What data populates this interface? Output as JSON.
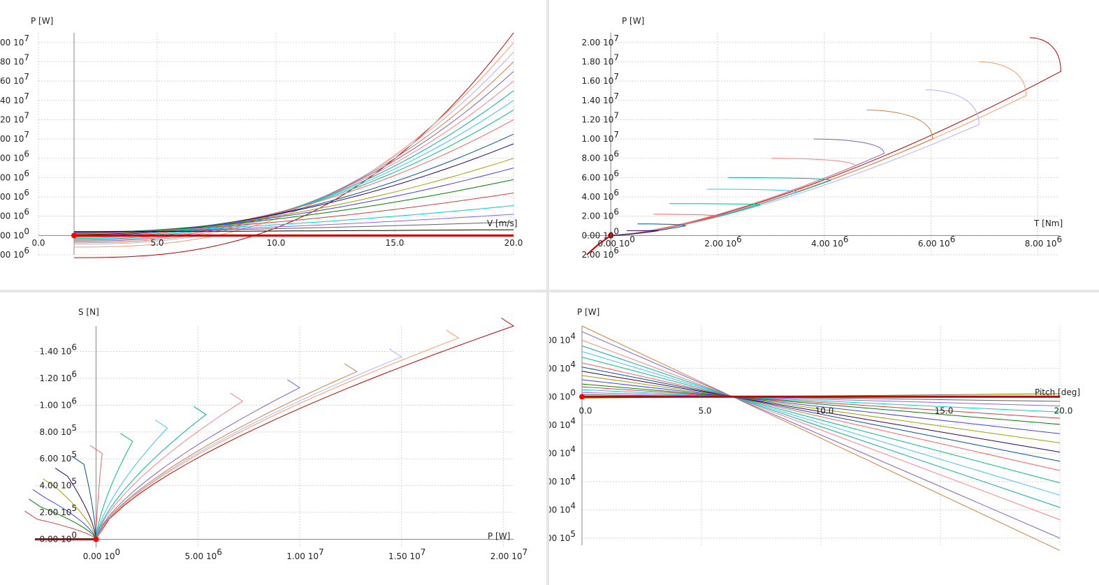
{
  "colors": [
    "#c00000",
    "#ff9966",
    "#b0b0ff",
    "#d08040",
    "#8060c0",
    "#ff8080",
    "#00b0a0",
    "#40c0ff",
    "#00c080",
    "#ff6060",
    "#0050a0",
    "#300060",
    "#a0a000",
    "#4040ff",
    "#008000",
    "#d04040",
    "#00d0d0",
    "#9060ff",
    "#606060",
    "#000000",
    "#808000",
    "#404040"
  ],
  "chart_data": [
    {
      "type": "line",
      "ylabel": "P [W]",
      "xlabel": "V [m/s]",
      "xlim": [
        0,
        20
      ],
      "ylim": [
        -2000000,
        21000000
      ],
      "xticks": [
        {
          "v": 0,
          "label": "0.0"
        },
        {
          "v": 5,
          "label": "5.0"
        },
        {
          "v": 10,
          "label": "10.0"
        },
        {
          "v": 15,
          "label": "15.0"
        },
        {
          "v": 20,
          "label": "20.0"
        }
      ],
      "yticks": [
        {
          "v": -2000000,
          "m": "00",
          "e": "6"
        },
        {
          "v": 0,
          "m": "00",
          "e": "0"
        },
        {
          "v": 2000000,
          "m": "00",
          "e": "6"
        },
        {
          "v": 4000000,
          "m": "00",
          "e": "6"
        },
        {
          "v": 6000000,
          "m": "00",
          "e": "6"
        },
        {
          "v": 8000000,
          "m": "00",
          "e": "6"
        },
        {
          "v": 10000000,
          "m": "00",
          "e": "7"
        },
        {
          "v": 12000000,
          "m": "20",
          "e": "7"
        },
        {
          "v": 14000000,
          "m": "40",
          "e": "7"
        },
        {
          "v": 16000000,
          "m": "60",
          "e": "7"
        },
        {
          "v": 18000000,
          "m": "80",
          "e": "7"
        },
        {
          "v": 20000000,
          "m": "00",
          "e": "7"
        }
      ],
      "grid": true,
      "curves": {
        "count": 20,
        "v_from": 1.5,
        "v_to": 20,
        "finals_mw": [
          21,
          20,
          19,
          18,
          17,
          16,
          15,
          14,
          13,
          12,
          10.5,
          9.5,
          8,
          7,
          5.8,
          4.4,
          3.1,
          2.2,
          1.4,
          0.6
        ],
        "starts_mw": [
          -2.3,
          -1.2,
          -0.9,
          -0.75,
          -0.6,
          -0.5,
          -0.4,
          -0.3,
          -0.2,
          -0.1,
          0.0,
          0.1,
          0.2,
          0.25,
          0.3,
          0.3,
          0.35,
          0.35,
          0.4,
          0.4
        ]
      },
      "marker": {
        "x": 1.5,
        "y": 0
      }
    },
    {
      "type": "line",
      "ylabel": "P [W]",
      "xlabel": "T [Nm]",
      "xlim": [
        -500000,
        8400000
      ],
      "ylim": [
        -2000000,
        21000000
      ],
      "xticks": [
        {
          "v": 0,
          "m": "0.00",
          "e": "0"
        },
        {
          "v": 2000000,
          "m": "2.00",
          "e": "6"
        },
        {
          "v": 4000000,
          "m": "4.00",
          "e": "6"
        },
        {
          "v": 6000000,
          "m": "6.00",
          "e": "6"
        },
        {
          "v": 8000000,
          "m": "8.00",
          "e": "6"
        }
      ],
      "yticks": [
        {
          "v": -2000000,
          "m": "2.00",
          "e": "6"
        },
        {
          "v": 0,
          "m": "0.00",
          "e": "0"
        },
        {
          "v": 2000000,
          "m": "2.00",
          "e": "6"
        },
        {
          "v": 4000000,
          "m": "4.00",
          "e": "6"
        },
        {
          "v": 6000000,
          "m": "6.00",
          "e": "6"
        },
        {
          "v": 8000000,
          "m": "8.00",
          "e": "6"
        },
        {
          "v": 10000000,
          "m": "1.00",
          "e": "7"
        },
        {
          "v": 12000000,
          "m": "1.20",
          "e": "7"
        },
        {
          "v": 14000000,
          "m": "1.40",
          "e": "7"
        },
        {
          "v": 16000000,
          "m": "1.60",
          "e": "7"
        },
        {
          "v": 18000000,
          "m": "1.80",
          "e": "7"
        },
        {
          "v": 20000000,
          "m": "2.00",
          "e": "7"
        }
      ],
      "grid": true,
      "marker": {
        "x": 0,
        "y": 0
      },
      "loops": [
        {
          "tip": [
            7850000,
            20500000
          ],
          "knee": [
            8430000,
            17000000
          ]
        },
        {
          "tip": [
            6900000,
            18000000
          ],
          "knee": [
            7780000,
            14500000
          ]
        },
        {
          "tip": [
            5900000,
            15100000
          ],
          "knee": [
            6900000,
            11500000
          ]
        },
        {
          "tip": [
            4800000,
            13000000
          ],
          "knee": [
            6030000,
            10000000
          ]
        },
        {
          "tip": [
            3800000,
            10000000
          ],
          "knee": [
            5120000,
            8500000
          ]
        },
        {
          "tip": [
            3000000,
            8000000
          ],
          "knee": [
            4580000,
            7200000
          ]
        },
        {
          "tip": [
            2200000,
            6000000
          ],
          "knee": [
            4120000,
            5700000
          ]
        },
        {
          "tip": [
            1800000,
            4800000
          ],
          "knee": [
            3500000,
            4500000
          ]
        },
        {
          "tip": [
            1100000,
            3300000
          ],
          "knee": [
            2800000,
            3200000
          ]
        },
        {
          "tip": [
            800000,
            2200000
          ],
          "knee": [
            2000000,
            2000000
          ]
        },
        {
          "tip": [
            500000,
            1200000
          ],
          "knee": [
            1400000,
            1000000
          ]
        },
        {
          "tip": [
            300000,
            500000
          ],
          "knee": [
            900000,
            500000
          ]
        }
      ]
    },
    {
      "type": "line",
      "ylabel": "S [N]",
      "xlabel": "P [W]",
      "xlim": [
        -3000000,
        20500000
      ],
      "ylim": [
        -60000,
        1590000
      ],
      "xticks": [
        {
          "v": 0,
          "m": "0.00",
          "e": "0"
        },
        {
          "v": 5000000,
          "m": "5.00",
          "e": "6"
        },
        {
          "v": 10000000,
          "m": "1.00",
          "e": "7"
        },
        {
          "v": 15000000,
          "m": "1.50",
          "e": "7"
        },
        {
          "v": 20000000,
          "m": "2.00",
          "e": "7"
        }
      ],
      "yticks": [
        {
          "v": 0,
          "m": "0.00",
          "e": "0"
        },
        {
          "v": 200000,
          "m": "2.00",
          "e": "5"
        },
        {
          "v": 400000,
          "m": "4.00",
          "e": "5"
        },
        {
          "v": 600000,
          "m": "6.00",
          "e": "5"
        },
        {
          "v": 800000,
          "m": "8.00",
          "e": "5"
        },
        {
          "v": 1000000,
          "m": "1.00",
          "e": "6"
        },
        {
          "v": 1200000,
          "m": "1.20",
          "e": "6"
        },
        {
          "v": 1400000,
          "m": "1.40",
          "e": "6"
        }
      ],
      "grid": true,
      "marker": {
        "x": 0,
        "y": 0
      },
      "curves": [
        {
          "end": [
            20500000,
            1590000
          ]
        },
        {
          "end": [
            17800000,
            1500000
          ]
        },
        {
          "end": [
            15200000,
            1350000
          ]
        },
        {
          "end": [
            12600000,
            1200000
          ]
        },
        {
          "end": [
            10500000,
            1070000
          ]
        },
        {
          "end": [
            8700000,
            920000
          ]
        },
        {
          "end": [
            6800000,
            800000
          ]
        },
        {
          "end": [
            4800000,
            700000
          ]
        },
        {
          "end": [
            3200000,
            600000
          ]
        },
        {
          "end": [
            2000000,
            520000
          ]
        },
        {
          "end": [
            1000000,
            430000
          ]
        },
        {
          "end": [
            200000,
            350000
          ]
        },
        {
          "end": [
            -600000,
            260000
          ]
        },
        {
          "end": [
            -1200000,
            200000
          ]
        },
        {
          "end": [
            -1700000,
            130000
          ]
        },
        {
          "end": [
            -2200000,
            60000
          ]
        }
      ],
      "tops": [
        [
          20500000,
          1590000
        ],
        [
          17800000,
          1500000
        ],
        [
          15000000,
          1360000
        ],
        [
          12800000,
          1250000
        ],
        [
          10000000,
          1130000
        ],
        [
          7200000,
          1030000
        ],
        [
          5400000,
          930000
        ],
        [
          3500000,
          830000
        ],
        [
          1800000,
          730000
        ],
        [
          300000,
          640000
        ],
        [
          -600000,
          560000
        ],
        [
          -1400000,
          470000
        ],
        [
          -2000000,
          390000
        ],
        [
          -2500000,
          310000
        ],
        [
          -2700000,
          240000
        ],
        [
          -2900000,
          150000
        ]
      ]
    },
    {
      "type": "line",
      "ylabel": "P [W]",
      "xlabel": "Pitch [deg]",
      "xlim": [
        0,
        20
      ],
      "ylim": [
        -10500000,
        5000000
      ],
      "xticks": [
        {
          "v": 0,
          "label": "0.0"
        },
        {
          "v": 5,
          "label": "5.0"
        },
        {
          "v": 10,
          "label": "10.0"
        },
        {
          "v": 15,
          "label": "15.0"
        },
        {
          "v": 20,
          "label": "20.0"
        }
      ],
      "yticks": [
        {
          "v": 4000000,
          "m": "00",
          "e": "4"
        },
        {
          "v": 2000000,
          "m": "00",
          "e": "4"
        },
        {
          "v": 0,
          "m": "00",
          "e": "0"
        },
        {
          "v": -2000000,
          "m": "00",
          "e": "4"
        },
        {
          "v": -4000000,
          "m": "00",
          "e": "4"
        },
        {
          "v": -6000000,
          "m": "00",
          "e": "4"
        },
        {
          "v": -8000000,
          "m": "00",
          "e": "4"
        },
        {
          "v": -10000000,
          "m": "00",
          "e": "5"
        }
      ],
      "grid": true,
      "marker": {
        "x": 0,
        "y": 0
      },
      "fans": [
        5000000,
        4600000,
        4000000,
        3600000,
        3200000,
        2800000,
        2400000,
        2100000,
        1800000,
        1500000,
        1200000,
        900000,
        700000,
        500000,
        300000,
        150000,
        0,
        -100000
      ],
      "cross": {
        "x": 6.3,
        "y": 0
      }
    }
  ]
}
